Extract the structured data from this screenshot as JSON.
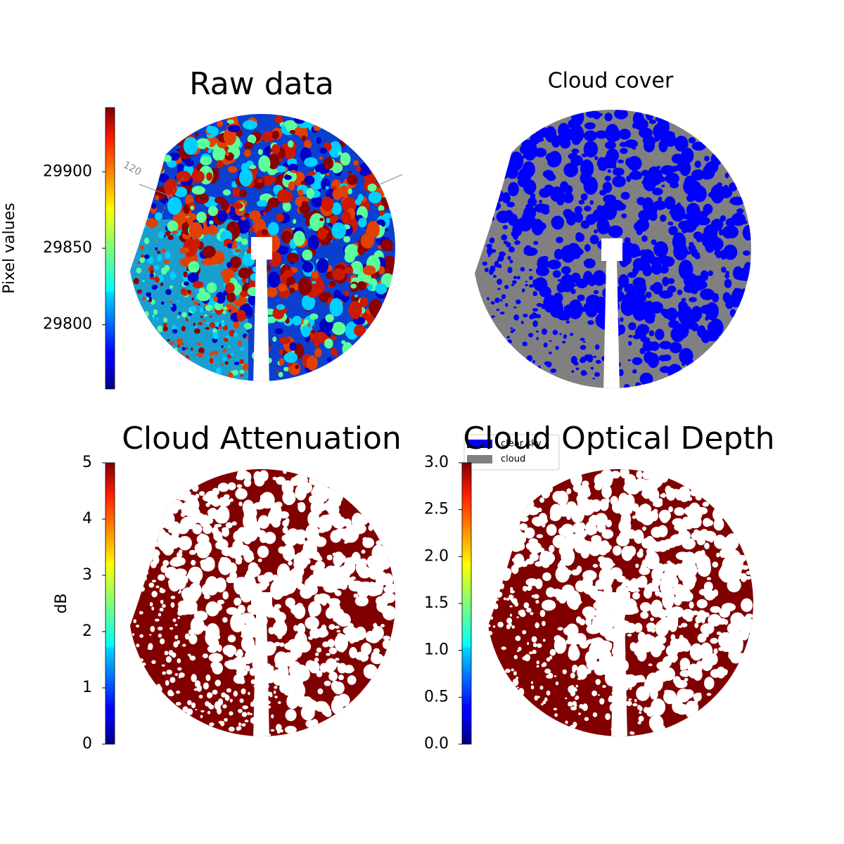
{
  "chart_data": [
    {
      "type": "image",
      "title": "Raw data",
      "colormap": "jet",
      "colorbar": {
        "label": "Pixel values",
        "lim": [
          29758,
          29942
        ],
        "ticks": [
          29800,
          29850,
          29900
        ]
      },
      "annotations": [
        "120"
      ]
    },
    {
      "type": "image",
      "title": "Cloud cover",
      "series": [
        {
          "name": "clear sky",
          "color": "#0000ff"
        },
        {
          "name": "cloud",
          "color": "#808080"
        }
      ]
    },
    {
      "type": "image",
      "title": "Cloud Attenuation",
      "colormap": "jet",
      "colorbar": {
        "label": "dB",
        "lim": [
          0,
          5
        ],
        "ticks": [
          0,
          1,
          2,
          3,
          4,
          5
        ]
      }
    },
    {
      "type": "image",
      "title": "Cloud Optical Depth",
      "colormap": "jet",
      "colorbar": {
        "lim": [
          0,
          3
        ],
        "ticks": [
          {
            "value": 0,
            "label": "0.0"
          },
          0.5,
          {
            "value": 1,
            "label": "1.0"
          },
          1.5,
          {
            "value": 2,
            "label": "2.0"
          },
          2.5,
          {
            "value": 3,
            "label": "3.0"
          }
        ]
      }
    }
  ]
}
